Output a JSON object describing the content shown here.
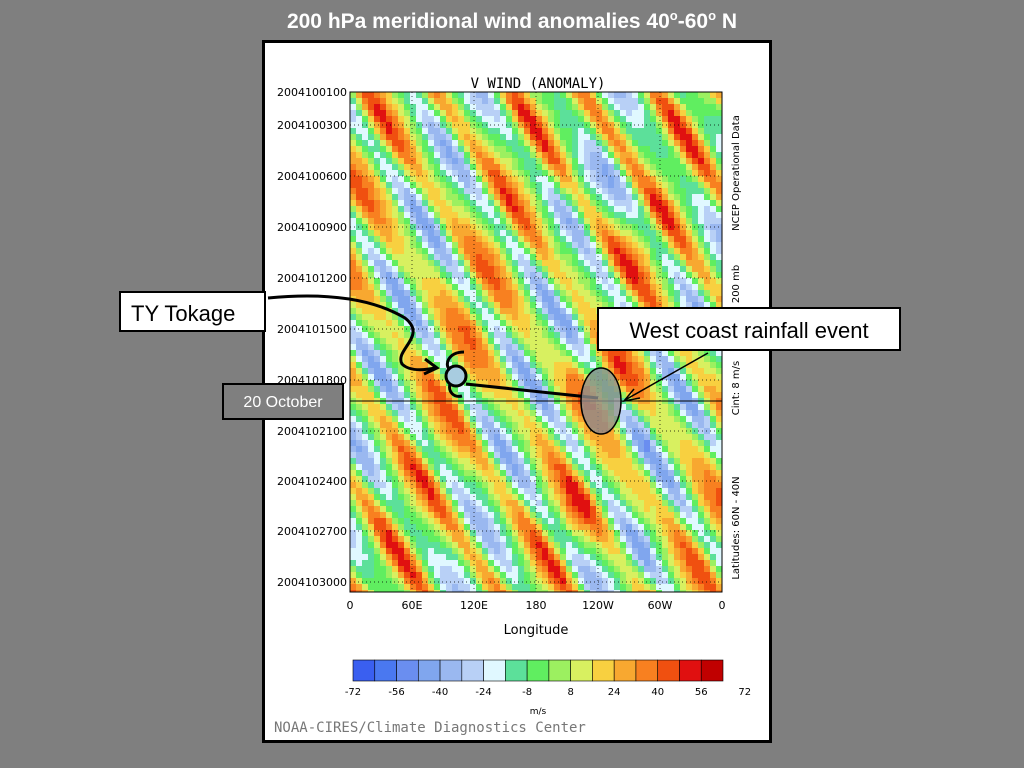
{
  "slide": {
    "title_main": "200 hPa meridional wind anomalies 40",
    "title_deg1": "o",
    "title_mid": "-60",
    "title_deg2": "o",
    "title_end": " N"
  },
  "callouts": {
    "ty_tokage": "TY Tokage",
    "west_coast": "West coast rainfall event",
    "date": "20 October"
  },
  "colors": {
    "background": "#7f7f7f",
    "scale": [
      "#3a5ff0",
      "#4a78f0",
      "#6a8ef0",
      "#80a6ee",
      "#9ab8f0",
      "#b8d0f6",
      "#e0f8ff",
      "#5ce09a",
      "#60ee60",
      "#9cf060",
      "#d8f060",
      "#f8d040",
      "#f8a830",
      "#f88020",
      "#f05010",
      "#e01010",
      "#c00000"
    ]
  },
  "chart_data": {
    "type": "heatmap",
    "title": "V WIND (ANOMALY)",
    "xlabel": "Longitude",
    "ylabel": "",
    "x_ticks": [
      "0",
      "60E",
      "120E",
      "180",
      "120W",
      "60W",
      "0"
    ],
    "y_ticks": [
      "2004100100",
      "2004100300",
      "2004100600",
      "2004100900",
      "2004101200",
      "2004101500",
      "2004101800",
      "2004102100",
      "2004102400",
      "2004102700",
      "2004103000"
    ],
    "side_labels": [
      "NCEP Operational Data",
      "200 mb",
      "Cint: 8 m/s",
      "Latitudes: 60N - 40N"
    ],
    "colorbar_ticks": [
      "-72",
      "-56",
      "-40",
      "-24",
      "-8",
      "8",
      "24",
      "40",
      "56",
      "72"
    ],
    "colorbar_unit": "m/s",
    "credit": "NOAA-CIRES/Climate Diagnostics Center",
    "grid": true
  }
}
